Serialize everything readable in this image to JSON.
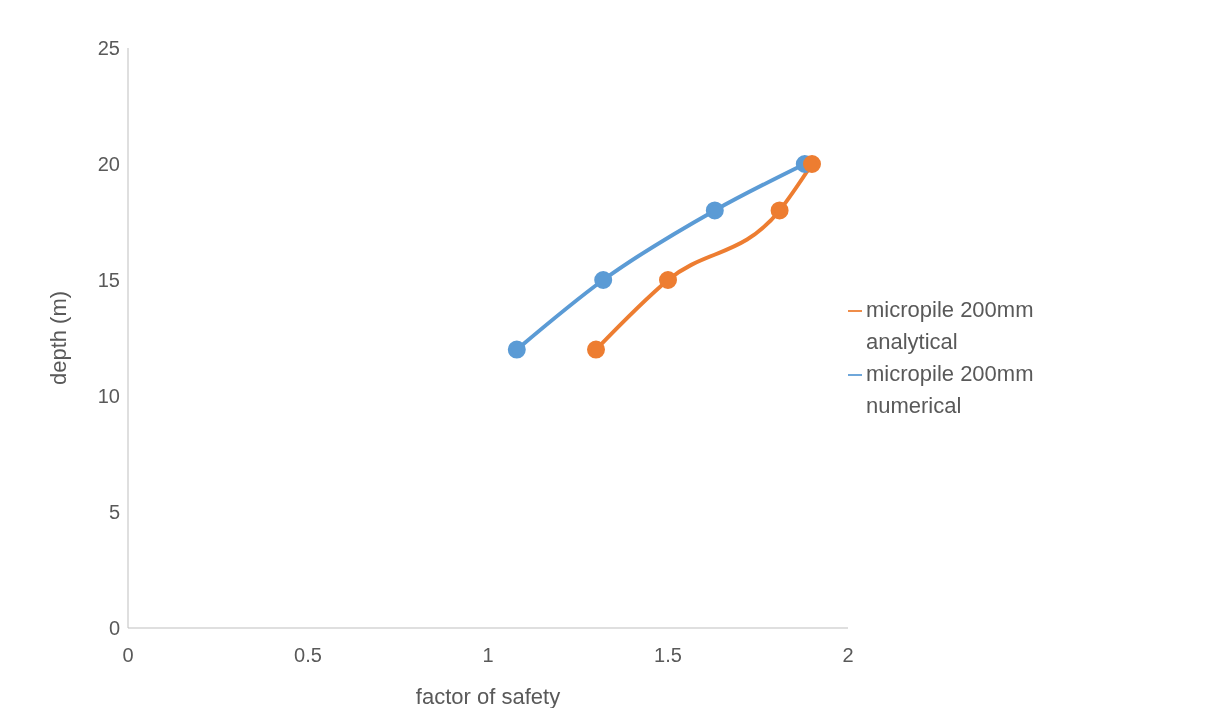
{
  "chart_data": {
    "type": "line",
    "xlabel": "factor of safety",
    "ylabel": "depth (m)",
    "xlim": [
      0,
      2
    ],
    "xticks": [
      0,
      0.5,
      1,
      1.5,
      2
    ],
    "ylim": [
      0,
      25
    ],
    "yticks": [
      0,
      5,
      10,
      15,
      20,
      25
    ],
    "grid": false,
    "legend": "right",
    "marker": "circle",
    "line_style": "solid",
    "series": [
      {
        "name": "micropile 200mm numerical",
        "color": "#5b9bd5",
        "x": [
          1.08,
          1.32,
          1.63,
          1.88
        ],
        "values": [
          12,
          15,
          18,
          20
        ]
      },
      {
        "name": "micropile 200mm analytical",
        "color": "#ed7d31",
        "x": [
          1.3,
          1.5,
          1.81,
          1.9
        ],
        "values": [
          12,
          15,
          18,
          20
        ]
      }
    ]
  }
}
